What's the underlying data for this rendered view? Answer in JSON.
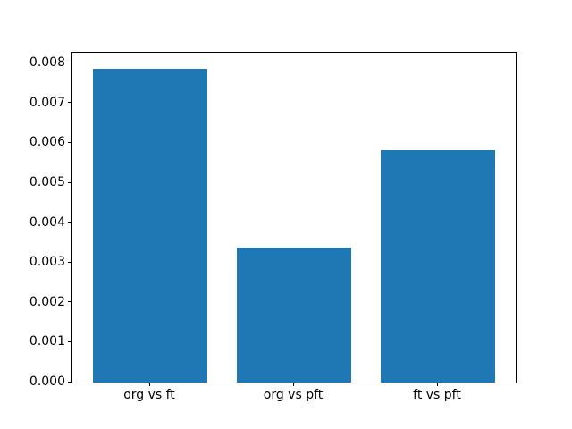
{
  "figure": {
    "background": "#ffffff"
  },
  "chart_data": {
    "type": "bar",
    "title": "",
    "xlabel": "",
    "ylabel": "",
    "categories": [
      "org vs ft",
      "org vs pft",
      "ft vs pft"
    ],
    "values": [
      0.00788,
      0.00339,
      0.00584
    ],
    "bar_color": "#1f77b4",
    "spine_color": "#000000",
    "tick_color": "#000000",
    "text_color": "#000000",
    "ylim": [
      0,
      0.008275
    ],
    "bar_width_fraction": 0.8,
    "grid": false,
    "legend": "none",
    "yticks": [
      {
        "value": 0.0,
        "label": "0.000"
      },
      {
        "value": 0.001,
        "label": "0.001"
      },
      {
        "value": 0.002,
        "label": "0.002"
      },
      {
        "value": 0.003,
        "label": "0.003"
      },
      {
        "value": 0.004,
        "label": "0.004"
      },
      {
        "value": 0.005,
        "label": "0.005"
      },
      {
        "value": 0.006,
        "label": "0.006"
      },
      {
        "value": 0.007,
        "label": "0.007"
      },
      {
        "value": 0.008,
        "label": "0.008"
      }
    ]
  }
}
